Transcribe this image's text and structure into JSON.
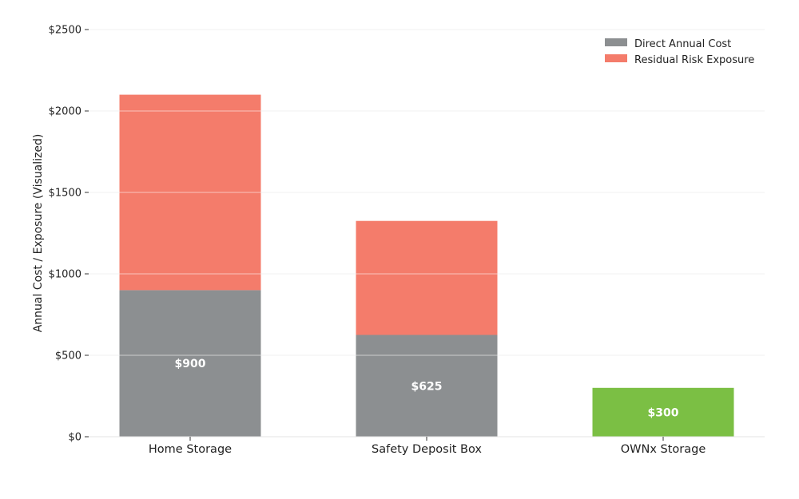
{
  "chart_data": {
    "type": "bar",
    "stacked": true,
    "categories": [
      "Home Storage",
      "Safety Deposit Box",
      "OWNx Storage"
    ],
    "series": [
      {
        "name": "Direct Annual Cost",
        "values": [
          900,
          625,
          300
        ],
        "color": "#8c8f91",
        "bar_colors": [
          "#8c8f91",
          "#8c8f91",
          "#7bbf44"
        ]
      },
      {
        "name": "Residual Risk Exposure",
        "values": [
          1200,
          700,
          0
        ],
        "color": "#f47c6b"
      }
    ],
    "data_labels": [
      "$900",
      "$625",
      "$300"
    ],
    "ylabel": "Annual Cost / Exposure (Visualized)",
    "xlabel": "",
    "ylim": [
      0,
      2500
    ],
    "yticks": [
      0,
      500,
      1000,
      1500,
      2000,
      2500
    ],
    "ytick_labels": [
      "$0",
      "$500",
      "$1000",
      "$1500",
      "$2000",
      "$2500"
    ],
    "grid": "horizontal",
    "legend_position": "top-right"
  }
}
